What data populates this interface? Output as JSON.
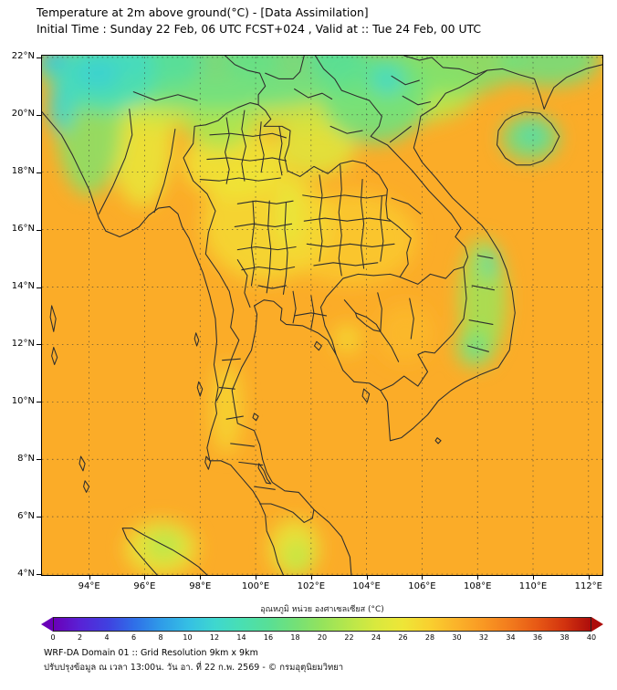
{
  "header": {
    "title": "Temperature at 2m above ground(°C) - [Data Assimilation]",
    "subtitle": "Initial Time : Sunday 22 Feb, 06 UTC FCST+024 , Valid at :: Tue 24 Feb, 00 UTC"
  },
  "footer": {
    "line1": "WRF-DA Domain 01 :: Grid Resolution 9km x 9km",
    "line2": "ปรับปรุงข้อมูล ณ เวลา 13:00น. วัน อา. ที่ 22 ก.พ. 2569 - © กรมอุตุนิยมวิทยา"
  },
  "chart_data": {
    "type": "heatmap",
    "title": "Temperature at 2m above ground (°C)",
    "model": "WRF-DA Domain 01 [Data Assimilation]",
    "initial_time": "Sunday 22 Feb, 06 UTC",
    "forecast_hour": "FCST+024",
    "valid_time": "Tue 24 Feb, 00 UTC",
    "grid": "dotted",
    "x_axis": {
      "label_suffix": "°E",
      "ticks": [
        94,
        96,
        98,
        100,
        102,
        104,
        106,
        108,
        110,
        112
      ],
      "range": [
        92.3,
        112.5
      ]
    },
    "y_axis": {
      "label_suffix": "°N",
      "ticks": [
        22,
        20,
        18,
        16,
        14,
        12,
        10,
        8,
        6,
        4
      ],
      "range": [
        3.97,
        22.06
      ]
    },
    "colorbar": {
      "label": "อุณหภูมิ หน่วย องศาเซลเซียส (°C)",
      "range": [
        0,
        40
      ],
      "ticks": [
        0,
        2,
        4,
        6,
        8,
        10,
        12,
        14,
        16,
        18,
        20,
        22,
        24,
        26,
        28,
        30,
        32,
        34,
        36,
        38,
        40
      ],
      "stops": [
        {
          "t": 0,
          "color": "#6a00b8"
        },
        {
          "t": 2,
          "color": "#5823d6"
        },
        {
          "t": 4,
          "color": "#4040e0"
        },
        {
          "t": 6,
          "color": "#2f6fe8"
        },
        {
          "t": 8,
          "color": "#2f9ce8"
        },
        {
          "t": 10,
          "color": "#35bfe4"
        },
        {
          "t": 12,
          "color": "#3ed7cf"
        },
        {
          "t": 14,
          "color": "#49dfb2"
        },
        {
          "t": 16,
          "color": "#58df96"
        },
        {
          "t": 18,
          "color": "#74e077"
        },
        {
          "t": 20,
          "color": "#95e35c"
        },
        {
          "t": 22,
          "color": "#b8e74b"
        },
        {
          "t": 24,
          "color": "#d9e93e"
        },
        {
          "t": 26,
          "color": "#eee637"
        },
        {
          "t": 28,
          "color": "#f9d02f"
        },
        {
          "t": 30,
          "color": "#fbb32a"
        },
        {
          "t": 32,
          "color": "#f99823"
        },
        {
          "t": 34,
          "color": "#f27b1d"
        },
        {
          "t": 36,
          "color": "#e75915"
        },
        {
          "t": 38,
          "color": "#d3340f"
        },
        {
          "t": 40,
          "color": "#ad0d0b"
        }
      ]
    },
    "ambient_temp_c": 30.5,
    "regions": [
      {
        "name": "central-thailand-plain",
        "lon": 100.4,
        "lat": 16.2,
        "rx": 2.3,
        "ry": 2.0,
        "temp_c": 27.2
      },
      {
        "name": "upper-north-thailand-valley",
        "lon": 99.2,
        "lat": 18.3,
        "rx": 1.8,
        "ry": 1.2,
        "temp_c": 26
      },
      {
        "name": "northeast-thailand-isan",
        "lon": 103.4,
        "lat": 15.7,
        "rx": 2.4,
        "ry": 1.6,
        "temp_c": 28.5
      },
      {
        "name": "irrawaddy-valley-myanmar",
        "lon": 95.9,
        "lat": 19.0,
        "rx": 1.1,
        "ry": 2.2,
        "temp_c": 25.5
      },
      {
        "name": "arakan-mountains-myanmar",
        "lon": 94.0,
        "lat": 19.8,
        "rx": 1.2,
        "ry": 2.6,
        "temp_c": 19
      },
      {
        "name": "far-north-cold-band",
        "lon": 98.5,
        "lat": 21.7,
        "rx": 6.5,
        "ry": 1.5,
        "temp_c": 17
      },
      {
        "name": "north-transition-band",
        "lon": 99.5,
        "lat": 20.4,
        "rx": 6.0,
        "ry": 0.9,
        "temp_c": 23
      },
      {
        "name": "shan-hills-west-cold",
        "lon": 94.6,
        "lat": 21.3,
        "rx": 1.8,
        "ry": 1.2,
        "temp_c": 13.5
      },
      {
        "name": "top-left-cold-core",
        "lon": 94.3,
        "lat": 21.45,
        "rx": 0.8,
        "ry": 0.6,
        "temp_c": 11.5
      },
      {
        "name": "chin-hills-cold-core",
        "lon": 93.0,
        "lat": 20.3,
        "rx": 0.5,
        "ry": 0.9,
        "temp_c": 12
      },
      {
        "name": "northwest-corner-cold",
        "lon": 92.7,
        "lat": 21.9,
        "rx": 0.55,
        "ry": 0.45,
        "temp_c": 10.5
      },
      {
        "name": "kachin-cold-spot",
        "lon": 95.6,
        "lat": 21.95,
        "rx": 0.7,
        "ry": 0.5,
        "temp_c": 13
      },
      {
        "name": "shan-plateau-east-cold",
        "lon": 96.8,
        "lat": 21.8,
        "rx": 1.3,
        "ry": 0.8,
        "temp_c": 15.5
      },
      {
        "name": "golden-triangle-cold-spot",
        "lon": 99.9,
        "lat": 21.85,
        "rx": 1.0,
        "ry": 0.6,
        "temp_c": 17
      },
      {
        "name": "sipsongpanna-cold-spot",
        "lon": 102.9,
        "lat": 21.9,
        "rx": 1.0,
        "ry": 0.7,
        "temp_c": 16
      },
      {
        "name": "north-thailand-mountains",
        "lon": 98.7,
        "lat": 19.7,
        "rx": 1.2,
        "ry": 0.9,
        "temp_c": 21
      },
      {
        "name": "northern-laos-mountains",
        "lon": 104.3,
        "lat": 20.6,
        "rx": 1.9,
        "ry": 1.6,
        "temp_c": 17.5
      },
      {
        "name": "annamite-cold-core",
        "lon": 104.75,
        "lat": 21.2,
        "rx": 0.6,
        "ry": 0.5,
        "temp_c": 12.5
      },
      {
        "name": "laos-uplands",
        "lon": 102.2,
        "lat": 18.9,
        "rx": 1.4,
        "ry": 1.0,
        "temp_c": 24.5
      },
      {
        "name": "phetchabun-range",
        "lon": 101.2,
        "lat": 16.6,
        "rx": 0.5,
        "ry": 1.2,
        "temp_c": 25.5
      },
      {
        "name": "ne-vietnam-china-band",
        "lon": 107.0,
        "lat": 21.8,
        "rx": 2.6,
        "ry": 1.1,
        "temp_c": 18.5
      },
      {
        "name": "viet-north-transition",
        "lon": 105.5,
        "lat": 20.9,
        "rx": 2.5,
        "ry": 1.2,
        "temp_c": 22
      },
      {
        "name": "red-river-delta",
        "lon": 106.35,
        "lat": 20.75,
        "rx": 0.8,
        "ry": 0.45,
        "temp_c": 24.5
      },
      {
        "name": "top-right-china-hills",
        "lon": 110.6,
        "lat": 21.9,
        "rx": 1.8,
        "ry": 0.9,
        "temp_c": 17.5
      },
      {
        "name": "hainan-island-cool",
        "lon": 109.9,
        "lat": 19.2,
        "rx": 1.05,
        "ry": 0.8,
        "temp_c": 17.5
      },
      {
        "name": "hainan-cold-core",
        "lon": 109.95,
        "lat": 19.3,
        "rx": 0.45,
        "ry": 0.35,
        "temp_c": 13.5
      },
      {
        "name": "vietnam-central-highlands",
        "lon": 108.2,
        "lat": 13.6,
        "rx": 0.85,
        "ry": 2.1,
        "temp_c": 20.5
      },
      {
        "name": "highlands-cold-core",
        "lon": 108.4,
        "lat": 14.8,
        "rx": 0.3,
        "ry": 0.5,
        "temp_c": 14.5
      },
      {
        "name": "dalat-plateau",
        "lon": 107.9,
        "lat": 11.9,
        "rx": 0.7,
        "ry": 0.7,
        "temp_c": 19.5
      },
      {
        "name": "dalat-cold-core",
        "lon": 107.95,
        "lat": 11.85,
        "rx": 0.3,
        "ry": 0.3,
        "temp_c": 15
      },
      {
        "name": "cardamom-mountains",
        "lon": 103.3,
        "lat": 12.2,
        "rx": 0.5,
        "ry": 0.5,
        "temp_c": 27
      },
      {
        "name": "east-cambodia-warm",
        "lon": 105.4,
        "lat": 12.4,
        "rx": 1.0,
        "ry": 1.0,
        "temp_c": 29.5
      },
      {
        "name": "peninsula-mountain-range",
        "lon": 98.95,
        "lat": 9.8,
        "rx": 0.55,
        "ry": 1.6,
        "temp_c": 27.5
      },
      {
        "name": "malaysia-highlands",
        "lon": 101.4,
        "lat": 4.9,
        "rx": 0.9,
        "ry": 1.0,
        "temp_c": 25.5
      },
      {
        "name": "malaysia-highlands-core",
        "lon": 101.5,
        "lat": 4.6,
        "rx": 0.5,
        "ry": 0.6,
        "temp_c": 22.5
      },
      {
        "name": "north-sumatra",
        "lon": 96.6,
        "lat": 4.9,
        "rx": 1.3,
        "ry": 0.95,
        "temp_c": 25.5
      },
      {
        "name": "north-sumatra-core",
        "lon": 96.7,
        "lat": 5.0,
        "rx": 0.7,
        "ry": 0.55,
        "temp_c": 22
      }
    ]
  }
}
